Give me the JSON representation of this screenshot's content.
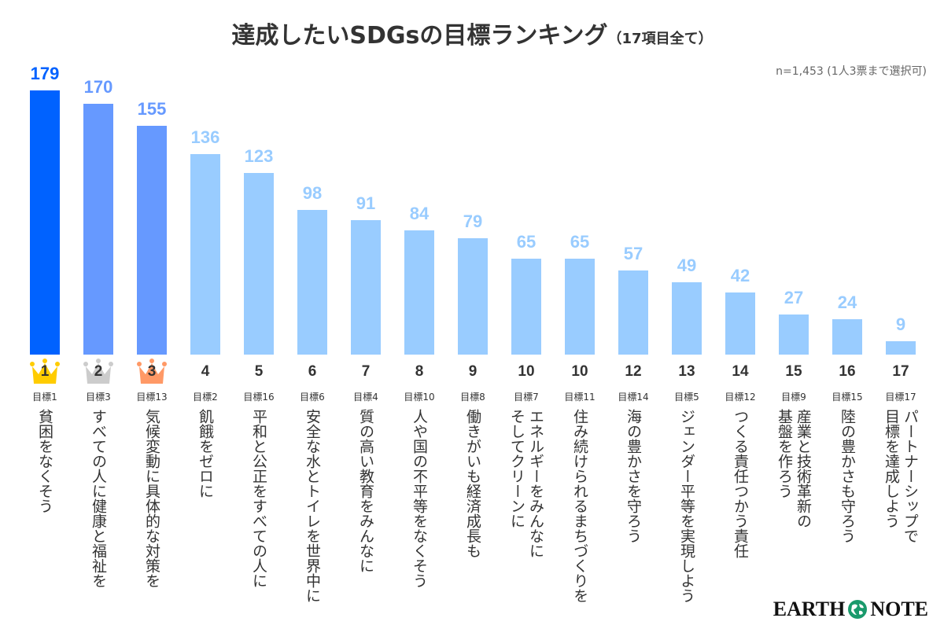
{
  "chart_data": {
    "type": "bar",
    "title": "達成したいSDGsの目標ランキング",
    "subtitle": "（17項目全て）",
    "note": "n=1,453 (1人3票まで選択可)",
    "ylim": [
      0,
      179
    ],
    "grid": false,
    "colors": {
      "rank1": "#0062ff",
      "rank2_3": "#6699ff",
      "others": "#99ccff",
      "gold": "#ffcc00",
      "silver": "#cccccc",
      "bronze": "#ff9966"
    },
    "categories": [
      {
        "rank": "1",
        "goal": "目標1",
        "label": "貧困をなくそう",
        "value": 179
      },
      {
        "rank": "2",
        "goal": "目標3",
        "label": "すべての人に健康と福祉を",
        "value": 170
      },
      {
        "rank": "3",
        "goal": "目標13",
        "label": "気候変動に具体的な対策を",
        "value": 155
      },
      {
        "rank": "4",
        "goal": "目標2",
        "label": "飢餓をゼロに",
        "value": 136
      },
      {
        "rank": "5",
        "goal": "目標16",
        "label": "平和と公正をすべての人に",
        "value": 123
      },
      {
        "rank": "6",
        "goal": "目標6",
        "label": "安全な水とトイレを世界中に",
        "value": 98
      },
      {
        "rank": "7",
        "goal": "目標4",
        "label": "質の高い教育をみんなに",
        "value": 91
      },
      {
        "rank": "8",
        "goal": "目標10",
        "label": "人や国の不平等をなくそう",
        "value": 84
      },
      {
        "rank": "9",
        "goal": "目標8",
        "label": "働きがいも経済成長も",
        "value": 79
      },
      {
        "rank": "10",
        "goal": "目標7",
        "label": "エネルギーをみんなに\nそしてクリーンに",
        "value": 65
      },
      {
        "rank": "10",
        "goal": "目標11",
        "label": "住み続けられるまちづくりを",
        "value": 65
      },
      {
        "rank": "12",
        "goal": "目標14",
        "label": "海の豊かさを守ろう",
        "value": 57
      },
      {
        "rank": "13",
        "goal": "目標5",
        "label": "ジェンダー平等を実現しよう",
        "value": 49
      },
      {
        "rank": "14",
        "goal": "目標12",
        "label": "つくる責任つかう責任",
        "value": 42
      },
      {
        "rank": "15",
        "goal": "目標9",
        "label": "産業と技術革新の\n基盤を作ろう",
        "value": 27
      },
      {
        "rank": "16",
        "goal": "目標15",
        "label": "陸の豊かさも守ろう",
        "value": 24
      },
      {
        "rank": "17",
        "goal": "目標17",
        "label": "パートナーシップで\n目標を達成しよう",
        "value": 9
      }
    ]
  },
  "logo": {
    "left": "EARTH",
    "right": "NOTE"
  }
}
